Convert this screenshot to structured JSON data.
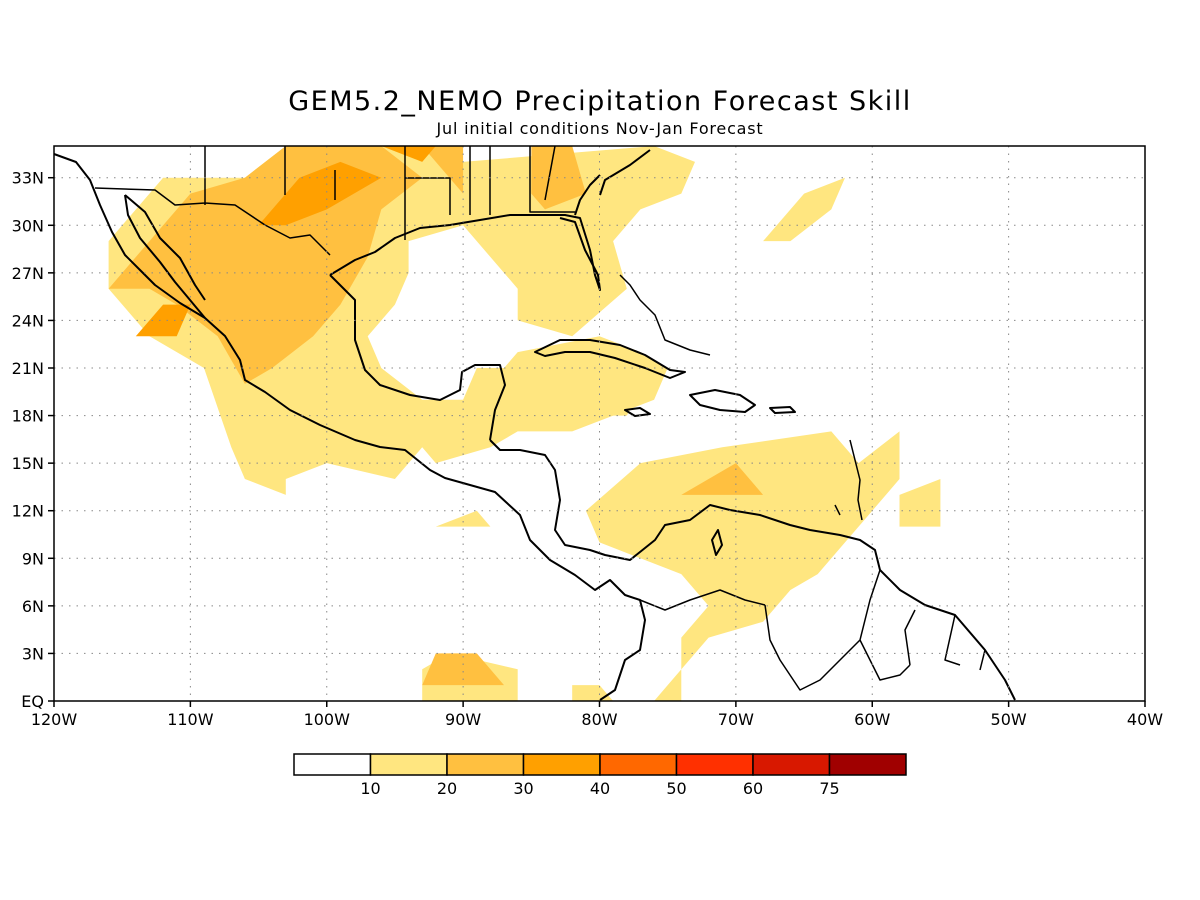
{
  "title": "GEM5.2_NEMO Precipitation Forecast Skill",
  "subtitle": "Jul initial conditions   Nov-Jan Forecast",
  "map": {
    "lon_range": [
      -120,
      -40
    ],
    "lat_range": [
      0,
      35
    ],
    "grid": true,
    "lon_ticks": [
      {
        "value": -120,
        "label": "120W"
      },
      {
        "value": -110,
        "label": "110W"
      },
      {
        "value": -100,
        "label": "100W"
      },
      {
        "value": -90,
        "label": "90W"
      },
      {
        "value": -80,
        "label": "80W"
      },
      {
        "value": -70,
        "label": "70W"
      },
      {
        "value": -60,
        "label": "60W"
      },
      {
        "value": -50,
        "label": "50W"
      },
      {
        "value": -40,
        "label": "40W"
      }
    ],
    "lat_ticks": [
      {
        "value": 0,
        "label": "EQ"
      },
      {
        "value": 3,
        "label": "3N"
      },
      {
        "value": 6,
        "label": "6N"
      },
      {
        "value": 9,
        "label": "9N"
      },
      {
        "value": 12,
        "label": "12N"
      },
      {
        "value": 15,
        "label": "15N"
      },
      {
        "value": 18,
        "label": "18N"
      },
      {
        "value": 21,
        "label": "21N"
      },
      {
        "value": 24,
        "label": "24N"
      },
      {
        "value": 27,
        "label": "27N"
      },
      {
        "value": 30,
        "label": "30N"
      },
      {
        "value": 33,
        "label": "33N"
      }
    ]
  },
  "colorbar": {
    "colors": [
      "#ffffff",
      "#ffe680",
      "#ffc040",
      "#ffa000",
      "#ff6800",
      "#ff3000",
      "#d81800",
      "#a00000"
    ],
    "labels": [
      "10",
      "20",
      "30",
      "40",
      "50",
      "60",
      "75"
    ]
  },
  "regions": [
    {
      "level": 1,
      "color": "#ffe680",
      "points": [
        [
          -116,
          29
        ],
        [
          -112,
          33
        ],
        [
          -106,
          33
        ],
        [
          -103,
          35
        ],
        [
          -91,
          35
        ],
        [
          -90,
          34
        ],
        [
          -76,
          35
        ],
        [
          -73,
          34
        ],
        [
          -74,
          32
        ],
        [
          -77,
          31
        ],
        [
          -79,
          29
        ],
        [
          -78,
          26
        ],
        [
          -82,
          23
        ],
        [
          -86,
          24
        ],
        [
          -86,
          26
        ],
        [
          -88,
          28
        ],
        [
          -90,
          30
        ],
        [
          -94,
          29
        ],
        [
          -94,
          27
        ],
        [
          -95,
          25
        ],
        [
          -97,
          23
        ],
        [
          -96,
          21
        ],
        [
          -93,
          19
        ],
        [
          -90,
          19
        ],
        [
          -89,
          21
        ],
        [
          -87,
          21
        ],
        [
          -86,
          22
        ],
        [
          -80,
          23
        ],
        [
          -77,
          22
        ],
        [
          -75,
          21
        ],
        [
          -76,
          19
        ],
        [
          -79,
          18
        ],
        [
          -82,
          17
        ],
        [
          -86,
          17
        ],
        [
          -88,
          16
        ],
        [
          -92,
          15
        ],
        [
          -93,
          16
        ],
        [
          -95,
          14
        ],
        [
          -100,
          15
        ],
        [
          -103,
          14
        ],
        [
          -103,
          13
        ],
        [
          -106,
          14
        ],
        [
          -107,
          16
        ],
        [
          -109,
          21
        ],
        [
          -113,
          23
        ],
        [
          -116,
          26
        ]
      ]
    },
    {
      "level": 1,
      "color": "#ffe680",
      "points": [
        [
          -82,
          18
        ],
        [
          -78,
          18
        ],
        [
          -76,
          21
        ],
        [
          -80,
          21
        ]
      ]
    },
    {
      "level": 1,
      "color": "#ffe680",
      "points": [
        [
          -66,
          29
        ],
        [
          -63,
          31
        ],
        [
          -62,
          33
        ],
        [
          -65,
          32
        ],
        [
          -68,
          29
        ]
      ]
    },
    {
      "level": 1,
      "color": "#ffe680",
      "points": [
        [
          -81,
          12
        ],
        [
          -77,
          15
        ],
        [
          -71,
          16
        ],
        [
          -63,
          17
        ],
        [
          -61,
          15
        ],
        [
          -58,
          17
        ],
        [
          -58,
          14
        ],
        [
          -60,
          12
        ],
        [
          -62,
          10
        ],
        [
          -64,
          8
        ],
        [
          -66,
          7
        ],
        [
          -68,
          5
        ],
        [
          -72,
          4
        ],
        [
          -75,
          1
        ],
        [
          -76,
          0
        ],
        [
          -74,
          0
        ],
        [
          -74,
          4
        ],
        [
          -72,
          6
        ],
        [
          -74,
          8
        ],
        [
          -77,
          9
        ],
        [
          -80,
          10
        ]
      ]
    },
    {
      "level": 1,
      "color": "#ffe680",
      "points": [
        [
          -58,
          13
        ],
        [
          -55,
          14
        ],
        [
          -55,
          11
        ],
        [
          -58,
          11
        ]
      ]
    },
    {
      "level": 1,
      "color": "#ffe680",
      "points": [
        [
          -92,
          11
        ],
        [
          -89,
          12
        ],
        [
          -88,
          11
        ]
      ]
    },
    {
      "level": 1,
      "color": "#ffe680",
      "points": [
        [
          -91,
          3
        ],
        [
          -86,
          2
        ],
        [
          -86,
          0
        ],
        [
          -93,
          0
        ],
        [
          -93,
          2
        ]
      ]
    },
    {
      "level": 1,
      "color": "#ffe680",
      "points": [
        [
          -82,
          1
        ],
        [
          -80,
          1
        ],
        [
          -79,
          0
        ],
        [
          -82,
          0
        ]
      ]
    },
    {
      "level": 2,
      "color": "#ffc040",
      "points": [
        [
          -116,
          26
        ],
        [
          -113,
          29
        ],
        [
          -110,
          32
        ],
        [
          -106,
          33
        ],
        [
          -103,
          35
        ],
        [
          -96,
          35
        ],
        [
          -93,
          33
        ],
        [
          -96,
          31
        ],
        [
          -97,
          28
        ],
        [
          -99,
          25
        ],
        [
          -101,
          23
        ],
        [
          -104,
          21
        ],
        [
          -106,
          20
        ],
        [
          -108,
          23
        ],
        [
          -111,
          25
        ],
        [
          -113,
          26
        ]
      ]
    },
    {
      "level": 2,
      "color": "#ffc040",
      "points": [
        [
          -93,
          35
        ],
        [
          -90,
          35
        ],
        [
          -90,
          32
        ]
      ]
    },
    {
      "level": 2,
      "color": "#ffc040",
      "points": [
        [
          -85,
          35
        ],
        [
          -82,
          35
        ],
        [
          -81,
          32
        ],
        [
          -84,
          31
        ],
        [
          -85,
          32
        ]
      ]
    },
    {
      "level": 2,
      "color": "#ffc040",
      "points": [
        [
          -74,
          13
        ],
        [
          -70,
          15
        ],
        [
          -68,
          13
        ],
        [
          -71,
          13
        ]
      ]
    },
    {
      "level": 2,
      "color": "#ffc040",
      "points": [
        [
          -92,
          3
        ],
        [
          -89,
          3
        ],
        [
          -87,
          1
        ],
        [
          -93,
          1
        ]
      ]
    },
    {
      "level": 3,
      "color": "#ffa000",
      "points": [
        [
          -114,
          23
        ],
        [
          -112,
          25
        ],
        [
          -110,
          25
        ],
        [
          -111,
          23
        ]
      ]
    },
    {
      "level": 3,
      "color": "#ffa000",
      "points": [
        [
          -105,
          30
        ],
        [
          -102,
          33
        ],
        [
          -99,
          34
        ],
        [
          -96,
          33
        ],
        [
          -100,
          31
        ],
        [
          -103,
          30
        ]
      ]
    },
    {
      "level": 3,
      "color": "#ffa000",
      "points": [
        [
          -96,
          35
        ],
        [
          -92,
          35
        ],
        [
          -93,
          34
        ]
      ]
    }
  ]
}
